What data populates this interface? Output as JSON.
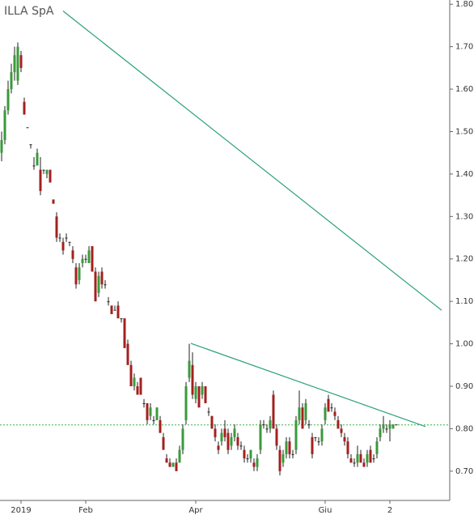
{
  "chart_data": {
    "type": "candlestick",
    "title": "ILLA SpA",
    "categories": [
      null,
      null,
      null,
      null,
      null,
      null,
      "2019",
      null,
      null,
      null,
      null,
      null,
      null,
      null,
      null,
      null,
      null,
      null,
      null,
      null,
      null,
      null,
      null,
      null,
      null,
      null,
      "Feb",
      null,
      null,
      null,
      null,
      null,
      null,
      null,
      null,
      null,
      null,
      null,
      null,
      null,
      null,
      null,
      null,
      null,
      null,
      null,
      null,
      null,
      null,
      null,
      null,
      null,
      null,
      null,
      null,
      null,
      null,
      null,
      null,
      null,
      "Apr",
      null,
      null,
      null,
      null,
      null,
      null,
      null,
      null,
      null,
      null,
      null,
      null,
      null,
      null,
      null,
      null,
      null,
      null,
      null,
      null,
      null,
      null,
      null,
      null,
      null,
      null,
      null,
      null,
      null,
      null,
      null,
      null,
      null,
      null,
      null,
      null,
      null,
      null,
      null,
      "Giu",
      null,
      null,
      null,
      null,
      null,
      null,
      null,
      null,
      null,
      null,
      null,
      null,
      null,
      null,
      null,
      null,
      null,
      null,
      null,
      "2",
      null,
      null
    ],
    "open": [
      1.45,
      1.48,
      1.55,
      1.6,
      1.64,
      1.62,
      1.68,
      1.57,
      1.51,
      1.47,
      1.42,
      1.42,
      1.41,
      1.41,
      1.4,
      1.41,
      1.34,
      1.3,
      1.25,
      1.24,
      1.25,
      1.24,
      1.22,
      1.18,
      1.15,
      1.19,
      1.2,
      1.19,
      1.23,
      1.17,
      1.12,
      1.17,
      1.14,
      1.1,
      1.09,
      1.08,
      1.09,
      1.06,
      1.06,
      1.0,
      0.95,
      0.9,
      0.9,
      0.92,
      0.86,
      0.86,
      0.83,
      0.82,
      0.82,
      0.82,
      0.78,
      0.73,
      0.72,
      0.71,
      0.72,
      0.72,
      0.75,
      0.82,
      0.92,
      0.95,
      0.87,
      0.9,
      0.88,
      0.9,
      0.84,
      0.83,
      0.8,
      0.76,
      0.77,
      0.8,
      0.79,
      0.76,
      0.78,
      0.78,
      0.76,
      0.75,
      0.73,
      0.73,
      0.72,
      0.71,
      0.75,
      0.81,
      0.8,
      0.8,
      0.88,
      0.8,
      0.75,
      0.72,
      0.74,
      0.77,
      0.74,
      0.75,
      0.82,
      0.85,
      0.82,
      0.81,
      0.78,
      0.78,
      0.77,
      0.77,
      0.82,
      0.87,
      0.85,
      0.84,
      0.82,
      0.8,
      0.78,
      0.77,
      0.73,
      0.72,
      0.72,
      0.74,
      0.72,
      0.72,
      0.75,
      0.73,
      0.74,
      0.78,
      0.8,
      0.8,
      0.8,
      0.8,
      0.81
    ],
    "high": [
      1.5,
      1.56,
      1.62,
      1.66,
      1.7,
      1.71,
      1.69,
      1.58,
      1.51,
      1.47,
      1.44,
      1.46,
      1.44,
      1.41,
      1.41,
      1.41,
      1.34,
      1.31,
      1.26,
      1.25,
      1.26,
      1.24,
      1.23,
      1.19,
      1.19,
      1.21,
      1.21,
      1.23,
      1.23,
      1.18,
      1.17,
      1.18,
      1.15,
      1.11,
      1.09,
      1.09,
      1.1,
      1.06,
      1.06,
      1.01,
      0.96,
      0.93,
      0.91,
      0.92,
      0.87,
      0.86,
      0.86,
      0.83,
      0.85,
      0.83,
      0.79,
      0.74,
      0.73,
      0.72,
      0.73,
      0.76,
      0.81,
      0.91,
      1.0,
      0.98,
      0.91,
      0.9,
      0.91,
      0.9,
      0.85,
      0.83,
      0.81,
      0.77,
      0.8,
      0.82,
      0.8,
      0.79,
      0.81,
      0.79,
      0.77,
      0.76,
      0.74,
      0.75,
      0.73,
      0.74,
      0.82,
      0.82,
      0.81,
      0.83,
      0.89,
      0.81,
      0.76,
      0.75,
      0.78,
      0.78,
      0.75,
      0.83,
      0.89,
      0.86,
      0.87,
      0.82,
      0.79,
      0.78,
      0.78,
      0.81,
      0.86,
      0.88,
      0.86,
      0.85,
      0.83,
      0.81,
      0.79,
      0.78,
      0.74,
      0.73,
      0.76,
      0.75,
      0.73,
      0.75,
      0.76,
      0.74,
      0.78,
      0.81,
      0.83,
      0.81,
      0.82,
      0.81,
      0.81
    ],
    "low": [
      1.43,
      1.47,
      1.54,
      1.59,
      1.62,
      1.61,
      1.64,
      1.54,
      1.51,
      1.46,
      1.41,
      1.42,
      1.35,
      1.4,
      1.39,
      1.38,
      1.33,
      1.24,
      1.24,
      1.21,
      1.24,
      1.23,
      1.19,
      1.13,
      1.14,
      1.18,
      1.19,
      1.19,
      1.17,
      1.1,
      1.11,
      1.13,
      1.13,
      1.09,
      1.07,
      1.08,
      1.06,
      1.05,
      0.99,
      0.95,
      0.9,
      0.89,
      0.88,
      0.88,
      0.85,
      0.81,
      0.82,
      0.81,
      0.82,
      0.79,
      0.75,
      0.72,
      0.71,
      0.71,
      0.7,
      0.72,
      0.74,
      0.81,
      0.91,
      0.87,
      0.86,
      0.85,
      0.87,
      0.86,
      0.83,
      0.8,
      0.77,
      0.74,
      0.76,
      0.77,
      0.74,
      0.75,
      0.77,
      0.75,
      0.75,
      0.72,
      0.72,
      0.72,
      0.7,
      0.7,
      0.74,
      0.8,
      0.79,
      0.79,
      0.8,
      0.75,
      0.69,
      0.71,
      0.73,
      0.73,
      0.73,
      0.74,
      0.81,
      0.8,
      0.81,
      0.8,
      0.73,
      0.77,
      0.76,
      0.76,
      0.81,
      0.84,
      0.84,
      0.82,
      0.8,
      0.78,
      0.76,
      0.73,
      0.72,
      0.71,
      0.71,
      0.72,
      0.71,
      0.71,
      0.72,
      0.72,
      0.73,
      0.77,
      0.79,
      0.79,
      0.77,
      0.8,
      0.81
    ],
    "close": [
      1.48,
      1.55,
      1.6,
      1.64,
      1.68,
      1.7,
      1.65,
      1.54,
      1.51,
      1.47,
      1.42,
      1.45,
      1.36,
      1.41,
      1.41,
      1.38,
      1.33,
      1.25,
      1.25,
      1.22,
      1.25,
      1.24,
      1.2,
      1.14,
      1.18,
      1.2,
      1.2,
      1.22,
      1.17,
      1.1,
      1.16,
      1.14,
      1.14,
      1.1,
      1.07,
      1.08,
      1.06,
      1.06,
      0.99,
      0.95,
      0.9,
      0.92,
      0.88,
      0.88,
      0.86,
      0.82,
      0.85,
      0.82,
      0.85,
      0.79,
      0.75,
      0.72,
      0.71,
      0.72,
      0.7,
      0.75,
      0.8,
      0.9,
      0.96,
      0.88,
      0.9,
      0.85,
      0.9,
      0.86,
      0.84,
      0.8,
      0.78,
      0.75,
      0.79,
      0.78,
      0.75,
      0.78,
      0.8,
      0.76,
      0.76,
      0.73,
      0.73,
      0.75,
      0.71,
      0.73,
      0.81,
      0.81,
      0.8,
      0.82,
      0.8,
      0.76,
      0.7,
      0.74,
      0.77,
      0.74,
      0.74,
      0.82,
      0.85,
      0.8,
      0.86,
      0.81,
      0.74,
      0.78,
      0.77,
      0.8,
      0.85,
      0.84,
      0.85,
      0.83,
      0.8,
      0.79,
      0.77,
      0.74,
      0.72,
      0.72,
      0.74,
      0.72,
      0.71,
      0.74,
      0.72,
      0.73,
      0.77,
      0.8,
      0.81,
      0.8,
      0.81,
      0.81,
      0.81
    ],
    "up_color": "#3a9a3a",
    "down_color": "#a3201f",
    "trendlines": [
      {
        "x": [
          19,
          136
        ],
        "y": [
          1.784,
          1.079
        ],
        "color": "#2aa07a"
      },
      {
        "x": [
          58.5,
          131
        ],
        "y": [
          1.001,
          0.805
        ],
        "color": "#2aa07a"
      }
    ],
    "hline": {
      "value": 0.809,
      "color": "#3cb043"
    },
    "ylim": [
      0.631,
      1.81
    ],
    "yticks": [
      {
        "value": 0.7,
        "label": "0.70"
      },
      {
        "value": 0.8,
        "label": "0.80"
      },
      {
        "value": 0.9,
        "label": "0.90"
      },
      {
        "value": 1.0,
        "label": "1.00"
      },
      {
        "value": 1.1,
        "label": "1.10"
      },
      {
        "value": 1.2,
        "label": "1.20"
      },
      {
        "value": 1.3,
        "label": "1.30"
      },
      {
        "value": 1.4,
        "label": "1.40"
      },
      {
        "value": 1.5,
        "label": "1.50"
      },
      {
        "value": 1.6,
        "label": "1.60"
      },
      {
        "value": 1.7,
        "label": "1.70"
      },
      {
        "value": 1.8,
        "label": "1.80"
      }
    ]
  }
}
